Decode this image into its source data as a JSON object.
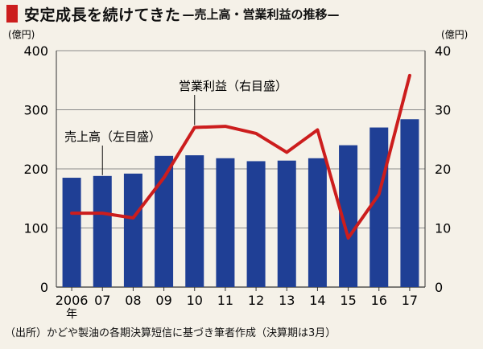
{
  "header": {
    "title": "安定成長を続けてきた",
    "subtitle": "—売上高・営業利益の推移—"
  },
  "footnote": "（出所）かどや製油の各期決算短信に基づき筆者作成（決算期は3月）",
  "colors": {
    "bar": "#1f3f95",
    "line": "#cc1d1d",
    "grid": "#8a8a8a",
    "background": "#f5f1e8"
  },
  "chart_data": {
    "type": "bar+line",
    "categories": [
      "2006",
      "07",
      "08",
      "09",
      "10",
      "11",
      "12",
      "13",
      "14",
      "15",
      "16",
      "17"
    ],
    "first_category_suffix": "年",
    "left_axis": {
      "unit": "(億円)",
      "min": 0,
      "max": 400,
      "ticks": [
        0,
        100,
        200,
        300,
        400
      ]
    },
    "right_axis": {
      "unit": "(億円)",
      "min": 0,
      "max": 40,
      "ticks": [
        0,
        10,
        20,
        30,
        40
      ]
    },
    "grid": true,
    "series": [
      {
        "name": "売上高（左目盛）",
        "type": "bar",
        "axis": "left",
        "values": [
          185,
          188,
          192,
          222,
          223,
          218,
          213,
          214,
          218,
          240,
          270,
          284
        ]
      },
      {
        "name": "営業利益（右目盛）",
        "type": "line",
        "axis": "right",
        "values": [
          12.5,
          12.5,
          11.7,
          18.5,
          27.0,
          27.2,
          26.0,
          22.8,
          26.6,
          8.3,
          15.7,
          35.8
        ]
      }
    ]
  }
}
